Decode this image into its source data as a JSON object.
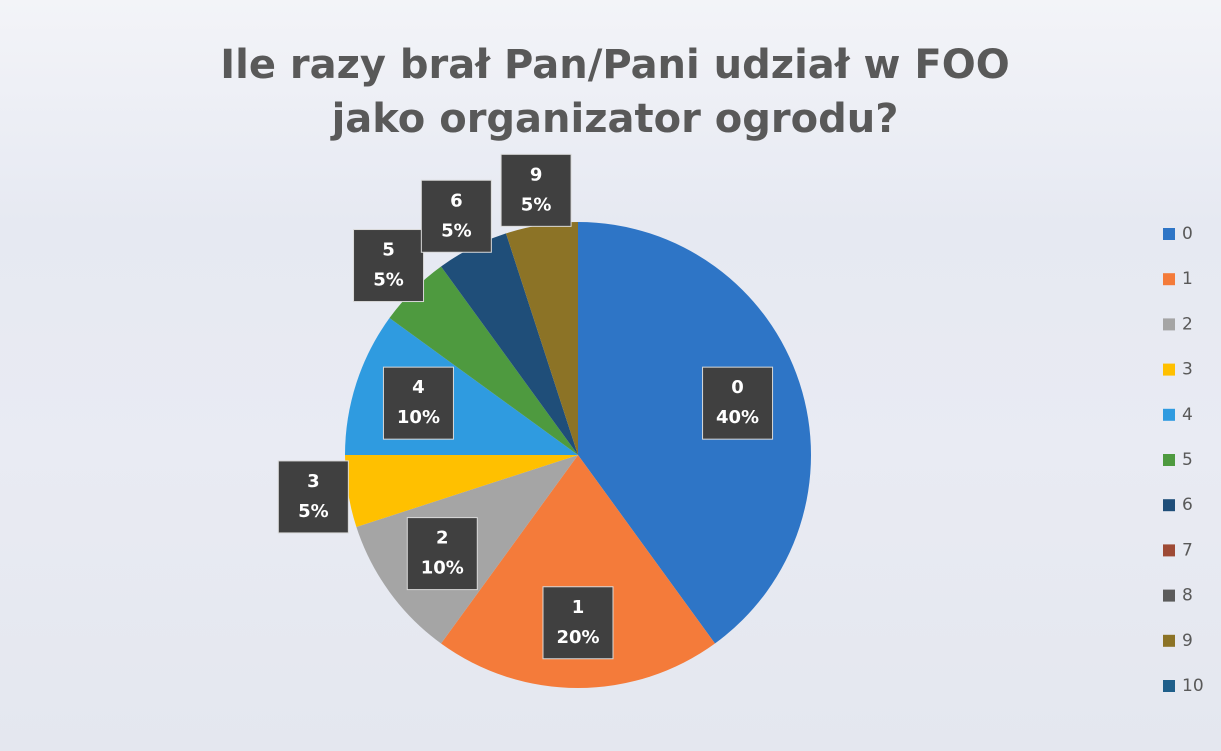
{
  "chart_data": {
    "type": "pie",
    "title": "Ile razy brał Pan/Pani udział w FOO jako organizator ogrodu?",
    "categories": [
      "0",
      "1",
      "2",
      "3",
      "4",
      "5",
      "6",
      "7",
      "8",
      "9",
      "10"
    ],
    "values": [
      40,
      20,
      10,
      5,
      10,
      5,
      5,
      0,
      0,
      5,
      0
    ],
    "value_labels": [
      "40%",
      "20%",
      "10%",
      "5%",
      "10%",
      "5%",
      "5%",
      null,
      null,
      "5%",
      null
    ],
    "colors": [
      "#2e75c6",
      "#f47b3a",
      "#a5a5a5",
      "#ffc000",
      "#2f9be0",
      "#4e9a3f",
      "#1f4e79",
      "#9e4a35",
      "#5b5b5b",
      "#8c7326",
      "#1f5f8a"
    ],
    "legend": "right"
  }
}
